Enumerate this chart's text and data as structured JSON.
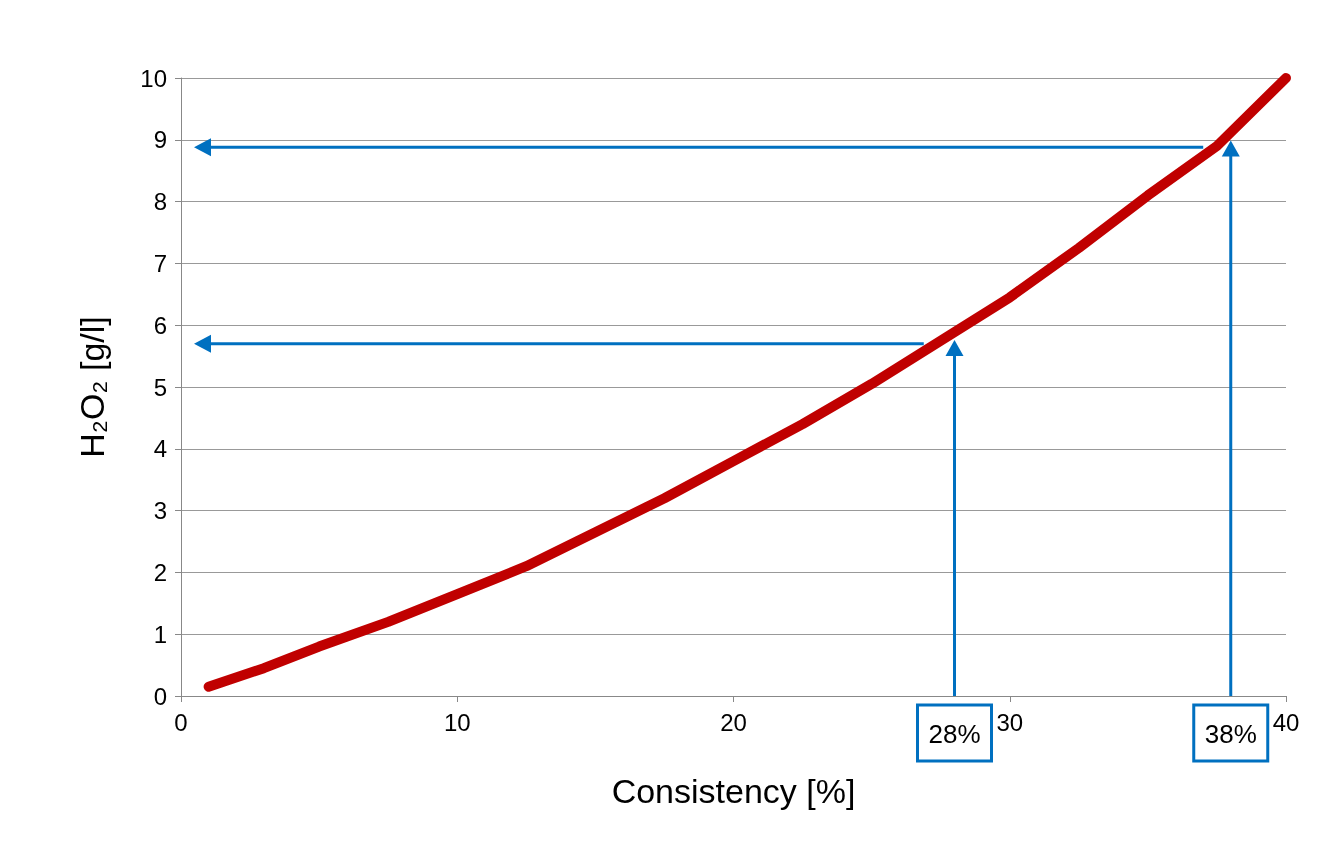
{
  "chart_data": {
    "type": "line",
    "xlabel": "Consistency [%]",
    "ylabel": "H₂O₂ [g/l]",
    "x": [
      1,
      3,
      5,
      7.5,
      10,
      12.5,
      15,
      17.5,
      20,
      22.5,
      25,
      27.5,
      30,
      32.5,
      35,
      37.5,
      40
    ],
    "series": [
      {
        "color": "#c00000",
        "values": [
          0.15,
          0.45,
          0.8,
          1.2,
          1.65,
          2.1,
          2.65,
          3.2,
          3.8,
          4.4,
          5.05,
          5.75,
          6.45,
          7.25,
          8.1,
          8.9,
          10
        ]
      }
    ],
    "xlim": [
      0,
      40
    ],
    "xticks": [
      0,
      10,
      20,
      30,
      40
    ],
    "ylim": [
      0,
      10
    ],
    "yticks": [
      0,
      1,
      2,
      3,
      4,
      5,
      6,
      7,
      8,
      9,
      10
    ],
    "grid": "y",
    "marker": "none",
    "line_style": "solid",
    "ref_lines": [
      {
        "axis": "x",
        "value": 28,
        "label": "28%",
        "color": "#0070c0"
      },
      {
        "axis": "x",
        "value": 38,
        "label": "38%",
        "color": "#0070c0"
      },
      {
        "axis": "y",
        "value": 5.7,
        "color": "#0070c0"
      },
      {
        "axis": "y",
        "value": 8.88,
        "color": "#0070c0"
      }
    ]
  }
}
